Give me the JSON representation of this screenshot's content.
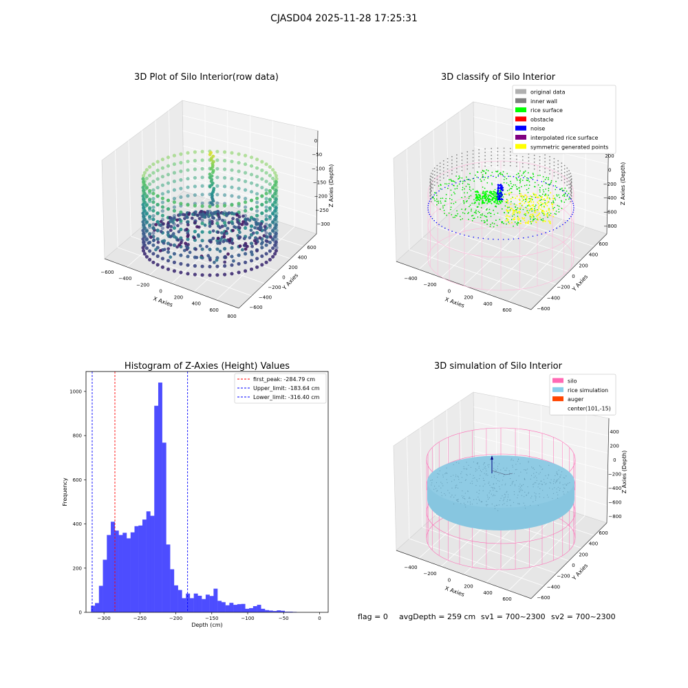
{
  "suptitle": "CJASD04 2025-11-28 17:25:31",
  "footer": {
    "flag": "flag = 0",
    "avg_depth": "avgDepth = 259 cm",
    "sv1": "sv1 = 700~2300",
    "sv2": "sv2 = 700~2300"
  },
  "chart_data": [
    {
      "type": "scatter",
      "projection": "3d",
      "title": "3D Plot of Silo Interior(row data)",
      "xlabel": "X Axies",
      "ylabel": "Y Axies",
      "zlabel": "Z Axies (Depth)",
      "xticks": [
        "−600",
        "−400",
        "−200",
        "0",
        "200",
        "400",
        "600",
        "800"
      ],
      "yticks": [
        "−600",
        "−400",
        "−200",
        "0",
        "200",
        "400",
        "600"
      ],
      "zticks": [
        "0",
        "−50",
        "−100",
        "−150",
        "−200",
        "−250",
        "−300"
      ],
      "colormap": "viridis"
    },
    {
      "type": "scatter",
      "projection": "3d",
      "title": "3D classify of Silo Interior",
      "xlabel": "X Axies",
      "ylabel": "Y Axies",
      "zlabel": "Z Axies (Depth)",
      "xticks": [
        "−400",
        "−200",
        "0",
        "200",
        "400",
        "600"
      ],
      "yticks": [
        "−600",
        "−400",
        "−200",
        "0",
        "200",
        "400",
        "600"
      ],
      "zticks": [
        "200",
        "0",
        "−200",
        "−400",
        "−600",
        "−800"
      ],
      "legend_position": "upper right",
      "legend": [
        {
          "label": "original data",
          "color": "#b0b0b0"
        },
        {
          "label": "inner wall",
          "color": "#808080"
        },
        {
          "label": "rice surface",
          "color": "#00ff00"
        },
        {
          "label": "obstacle",
          "color": "#ff0000"
        },
        {
          "label": "noise",
          "color": "#0000ff"
        },
        {
          "label": "interpolated rice surface",
          "color": "#800080"
        },
        {
          "label": "symmetric generated points",
          "color": "#ffff00"
        }
      ]
    },
    {
      "type": "bar",
      "title": "Histogram of Z-Axies (Height) Values",
      "xlabel": "Depth (cm)",
      "ylabel": "Frequency",
      "xlim": [
        -325,
        12
      ],
      "ylim": [
        0,
        1090
      ],
      "xticks": [
        -300,
        -250,
        -200,
        -150,
        -100,
        -50,
        0
      ],
      "yticks": [
        0,
        200,
        400,
        600,
        800,
        1000
      ],
      "bin_width": 5.5,
      "bin_start": -318,
      "bar_color": "#4d4dff",
      "values": [
        30,
        42,
        120,
        238,
        350,
        410,
        370,
        350,
        360,
        335,
        362,
        390,
        393,
        420,
        457,
        437,
        935,
        1040,
        768,
        307,
        195,
        122,
        101,
        64,
        85,
        64,
        85,
        75,
        60,
        80,
        74,
        107,
        52,
        46,
        32,
        43,
        34,
        37,
        38,
        16,
        19,
        28,
        34,
        16,
        10,
        8,
        6,
        9,
        7,
        3,
        3,
        2
      ],
      "vlines": [
        {
          "x": -284.79,
          "color": "#ff0000",
          "label": "first_peak: -284.79 cm"
        },
        {
          "x": -183.64,
          "color": "#0000ff",
          "label": "Upper_limit: -183.64 cm"
        },
        {
          "x": -316.4,
          "color": "#0000ff",
          "label": "Lower_limit: -316.40 cm"
        }
      ]
    },
    {
      "type": "scatter",
      "projection": "3d",
      "title": "3D simulation of Silo Interior",
      "xlabel": "X Axies",
      "ylabel": "Y Axies",
      "zlabel": "Z Axies (Depth)",
      "xticks": [
        "−400",
        "−200",
        "0",
        "200",
        "400",
        "600"
      ],
      "yticks": [
        "−600",
        "−400",
        "−200",
        "0",
        "200",
        "400",
        "600"
      ],
      "zticks": [
        "400",
        "200",
        "0",
        "−200",
        "−400",
        "−600",
        "−800"
      ],
      "legend_position": "upper right",
      "legend": [
        {
          "label": "silo",
          "color": "#ff69b4"
        },
        {
          "label": "rice simulation",
          "color": "#87ceeb"
        },
        {
          "label": "auger",
          "color": "#ff4500"
        },
        {
          "label": "center(101,-15)",
          "color": ""
        }
      ]
    }
  ]
}
